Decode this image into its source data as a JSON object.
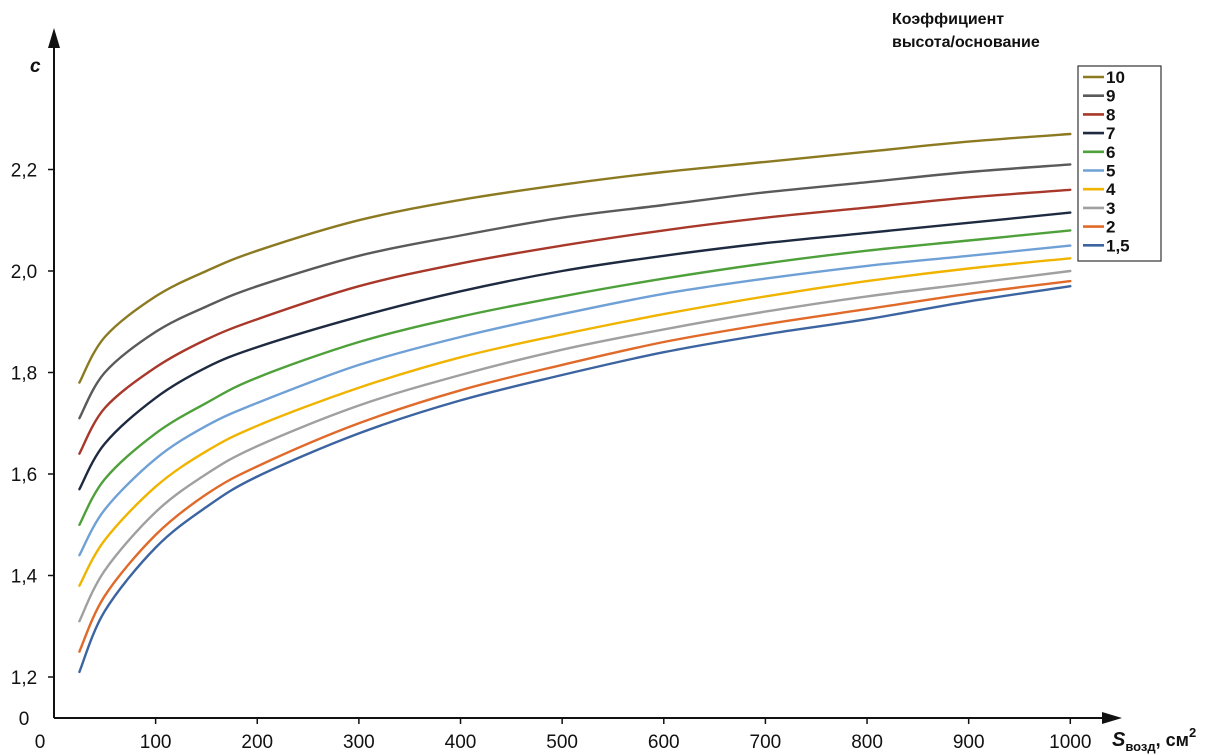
{
  "chart_data": {
    "type": "line",
    "ylabel": "c",
    "xlabel": {
      "main": "S",
      "sub": "возд",
      "unit": ", см",
      "sup": "2"
    },
    "legend_title": [
      "Коэффициент",
      "высота/основание"
    ],
    "legend_position": "top-right",
    "grid": false,
    "xlim": [
      0,
      1020
    ],
    "x_ticks": [
      0,
      100,
      200,
      300,
      400,
      500,
      600,
      700,
      800,
      900,
      1000
    ],
    "x_tick_labels": [
      "0",
      "100",
      "200",
      "300",
      "400",
      "500",
      "600",
      "700",
      "800",
      "900",
      "1000"
    ],
    "y_ticks": [
      0,
      1.2,
      1.4,
      1.6,
      1.8,
      2.0,
      2.2
    ],
    "y_tick_labels": [
      "0",
      "1,2",
      "1,4",
      "1,6",
      "1,8",
      "2,0",
      "2,2"
    ],
    "x": [
      25,
      50,
      100,
      150,
      200,
      300,
      400,
      500,
      600,
      700,
      800,
      900,
      1000
    ],
    "series": [
      {
        "name": "10",
        "color": "#8c7a22",
        "values": [
          1.78,
          1.87,
          1.95,
          2.0,
          2.04,
          2.1,
          2.14,
          2.17,
          2.195,
          2.215,
          2.235,
          2.255,
          2.27
        ]
      },
      {
        "name": "9",
        "color": "#5a5a5a",
        "values": [
          1.71,
          1.8,
          1.88,
          1.93,
          1.97,
          2.03,
          2.07,
          2.105,
          2.13,
          2.155,
          2.175,
          2.195,
          2.21
        ]
      },
      {
        "name": "8",
        "color": "#a8382a",
        "values": [
          1.64,
          1.73,
          1.81,
          1.865,
          1.905,
          1.97,
          2.015,
          2.05,
          2.08,
          2.105,
          2.125,
          2.145,
          2.16
        ]
      },
      {
        "name": "7",
        "color": "#1e2a40",
        "values": [
          1.57,
          1.66,
          1.75,
          1.81,
          1.85,
          1.91,
          1.96,
          2.0,
          2.03,
          2.055,
          2.075,
          2.095,
          2.115
        ]
      },
      {
        "name": "6",
        "color": "#4ea03a",
        "values": [
          1.5,
          1.59,
          1.68,
          1.74,
          1.79,
          1.86,
          1.91,
          1.95,
          1.985,
          2.015,
          2.04,
          2.06,
          2.08
        ]
      },
      {
        "name": "5",
        "color": "#6fa0d6",
        "values": [
          1.44,
          1.53,
          1.63,
          1.695,
          1.74,
          1.815,
          1.87,
          1.915,
          1.955,
          1.985,
          2.01,
          2.03,
          2.05
        ]
      },
      {
        "name": "4",
        "color": "#f0b400",
        "values": [
          1.38,
          1.47,
          1.575,
          1.645,
          1.695,
          1.77,
          1.83,
          1.875,
          1.915,
          1.95,
          1.98,
          2.005,
          2.025
        ]
      },
      {
        "name": "3",
        "color": "#a0a0a0",
        "values": [
          1.31,
          1.41,
          1.525,
          1.6,
          1.655,
          1.735,
          1.795,
          1.845,
          1.885,
          1.92,
          1.95,
          1.975,
          2.0
        ]
      },
      {
        "name": "2",
        "color": "#e06a2a",
        "values": [
          1.25,
          1.36,
          1.48,
          1.56,
          1.615,
          1.7,
          1.765,
          1.815,
          1.86,
          1.895,
          1.925,
          1.955,
          1.98
        ]
      },
      {
        "name": "1,5",
        "color": "#3c64a0",
        "values": [
          1.21,
          1.33,
          1.455,
          1.535,
          1.595,
          1.68,
          1.745,
          1.795,
          1.84,
          1.875,
          1.905,
          1.94,
          1.97
        ]
      }
    ]
  }
}
